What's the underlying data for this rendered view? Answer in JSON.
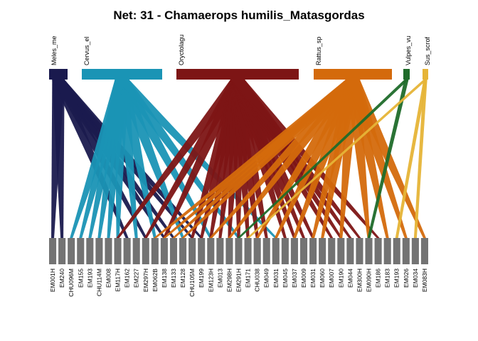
{
  "title": "Net: 31 - Chamaerops humilis_Matasgordas",
  "higher": [
    {
      "label": "Meles_me",
      "color": "#1a1a4e"
    },
    {
      "label": "Cervus_el",
      "color": "#1a94b5"
    },
    {
      "label": "Oryctolagu",
      "color": "#7d1515"
    },
    {
      "label": "Rattus_sp",
      "color": "#d46a0c"
    },
    {
      "label": "Vulpes_vu",
      "color": "#1f6b2a"
    },
    {
      "label": "Sus_scrof",
      "color": "#e6b437"
    }
  ],
  "lower": [
    "EM001H",
    "EM240",
    "CHU096M",
    "EM155",
    "EM193",
    "CHU114M",
    "EM008",
    "EM117H",
    "EM162",
    "EM227",
    "EM297H",
    "EM062B",
    "EM138",
    "EM133",
    "EM128",
    "CHU105M",
    "EM199",
    "EM123H",
    "EM013",
    "EM298H",
    "EM291H",
    "EM171",
    "CHU038",
    "EM049",
    "EM031",
    "EM045",
    "EM037",
    "EM009",
    "EM031",
    "EM060",
    "EM007",
    "EM190",
    "EM044",
    "EM300H",
    "EM090H",
    "EM186",
    "EM183",
    "EM193",
    "EM026",
    "EM034",
    "EM083H"
  ],
  "links": [
    [
      0,
      0
    ],
    [
      0,
      1
    ],
    [
      0,
      8
    ],
    [
      0,
      13
    ],
    [
      0,
      16
    ],
    [
      0,
      15
    ],
    [
      0,
      12
    ],
    [
      0,
      10
    ],
    [
      1,
      2
    ],
    [
      1,
      3
    ],
    [
      1,
      4
    ],
    [
      1,
      5
    ],
    [
      1,
      6
    ],
    [
      1,
      7
    ],
    [
      1,
      9
    ],
    [
      1,
      11
    ],
    [
      1,
      14
    ],
    [
      1,
      17
    ],
    [
      1,
      20
    ],
    [
      1,
      24
    ],
    [
      2,
      7
    ],
    [
      2,
      10
    ],
    [
      2,
      12
    ],
    [
      2,
      15
    ],
    [
      2,
      16
    ],
    [
      2,
      17
    ],
    [
      2,
      18
    ],
    [
      2,
      19
    ],
    [
      2,
      20
    ],
    [
      2,
      21
    ],
    [
      2,
      22
    ],
    [
      2,
      23
    ],
    [
      2,
      25
    ],
    [
      2,
      26
    ],
    [
      2,
      27
    ],
    [
      2,
      28
    ],
    [
      2,
      30
    ],
    [
      2,
      31
    ],
    [
      2,
      32
    ],
    [
      2,
      33
    ],
    [
      2,
      35
    ],
    [
      3,
      11
    ],
    [
      3,
      12
    ],
    [
      3,
      13
    ],
    [
      3,
      14
    ],
    [
      3,
      17
    ],
    [
      3,
      19
    ],
    [
      3,
      22
    ],
    [
      3,
      24
    ],
    [
      3,
      26
    ],
    [
      3,
      28
    ],
    [
      3,
      29
    ],
    [
      3,
      31
    ],
    [
      3,
      34
    ],
    [
      3,
      36
    ],
    [
      3,
      38
    ],
    [
      3,
      40
    ],
    [
      4,
      20
    ],
    [
      4,
      34
    ],
    [
      5,
      21
    ],
    [
      5,
      37
    ],
    [
      5,
      39
    ]
  ]
}
